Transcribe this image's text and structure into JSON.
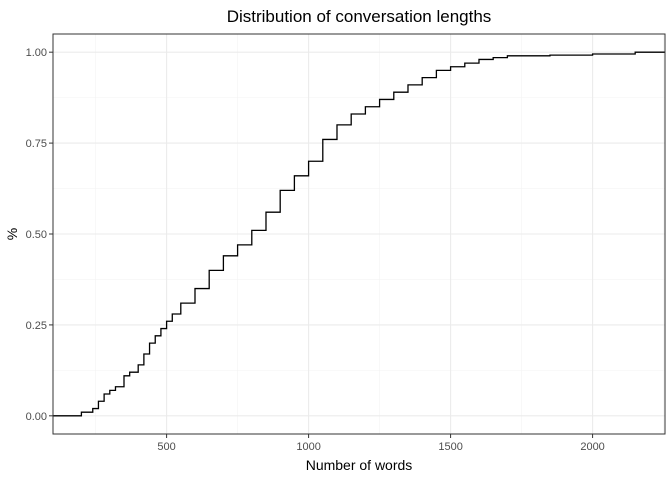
{
  "chart_data": {
    "type": "line",
    "step": true,
    "title": "Distribution of conversation lengths",
    "xlabel": "Number of words",
    "ylabel": "%",
    "xlim": [
      100,
      2255
    ],
    "ylim": [
      -0.05,
      1.05
    ],
    "x_ticks": [
      500,
      1000,
      1500,
      2000
    ],
    "x_tick_labels": [
      "500",
      "1000",
      "1500",
      "2000"
    ],
    "y_ticks": [
      0,
      0.25,
      0.5,
      0.75,
      1
    ],
    "y_tick_labels": [
      "0.00",
      "0.25",
      "0.50",
      "0.75",
      "1.00"
    ],
    "grid": true,
    "series": [
      {
        "x": [
          100,
          200,
          240,
          260,
          280,
          300,
          320,
          350,
          370,
          400,
          420,
          440,
          460,
          480,
          500,
          520,
          550,
          600,
          650,
          700,
          750,
          800,
          850,
          900,
          950,
          1000,
          1050,
          1100,
          1150,
          1200,
          1250,
          1300,
          1350,
          1400,
          1450,
          1500,
          1550,
          1600,
          1650,
          1700,
          1850,
          2000,
          2150,
          2255
        ],
        "y": [
          0,
          0.01,
          0.02,
          0.04,
          0.06,
          0.07,
          0.08,
          0.11,
          0.12,
          0.14,
          0.17,
          0.2,
          0.22,
          0.24,
          0.26,
          0.28,
          0.31,
          0.35,
          0.4,
          0.44,
          0.47,
          0.51,
          0.56,
          0.62,
          0.66,
          0.7,
          0.76,
          0.8,
          0.83,
          0.85,
          0.87,
          0.89,
          0.91,
          0.93,
          0.95,
          0.96,
          0.97,
          0.98,
          0.985,
          0.99,
          0.992,
          0.995,
          1.0,
          1.0
        ]
      }
    ]
  }
}
